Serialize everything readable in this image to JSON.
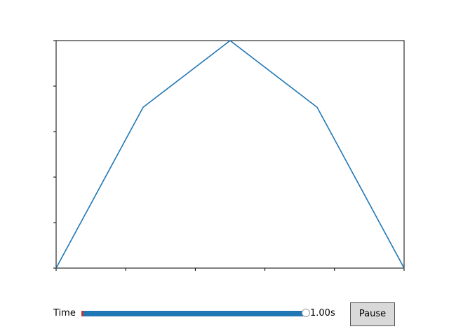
{
  "chart_data": {
    "type": "line",
    "x": [
      0,
      1,
      2,
      3,
      4
    ],
    "series": [
      {
        "values": [
          0,
          0.707,
          1.0,
          0.707,
          0
        ]
      }
    ],
    "xlim": [
      0,
      4
    ],
    "ylim": [
      0,
      1
    ],
    "x_ticks": [
      0,
      0.8,
      1.6,
      2.4,
      3.2,
      4.0
    ],
    "y_ticks": [
      0,
      0.2,
      0.4,
      0.6,
      0.8,
      1.0
    ],
    "tick_labels_visible": false,
    "grid": false,
    "line_color": "#1f77b4"
  },
  "controls": {
    "slider": {
      "label": "Time",
      "value_text": "1.00s",
      "value_fraction": 1.0,
      "fill_color": "#1f77b4"
    },
    "pause_button": {
      "label": "Pause"
    }
  }
}
